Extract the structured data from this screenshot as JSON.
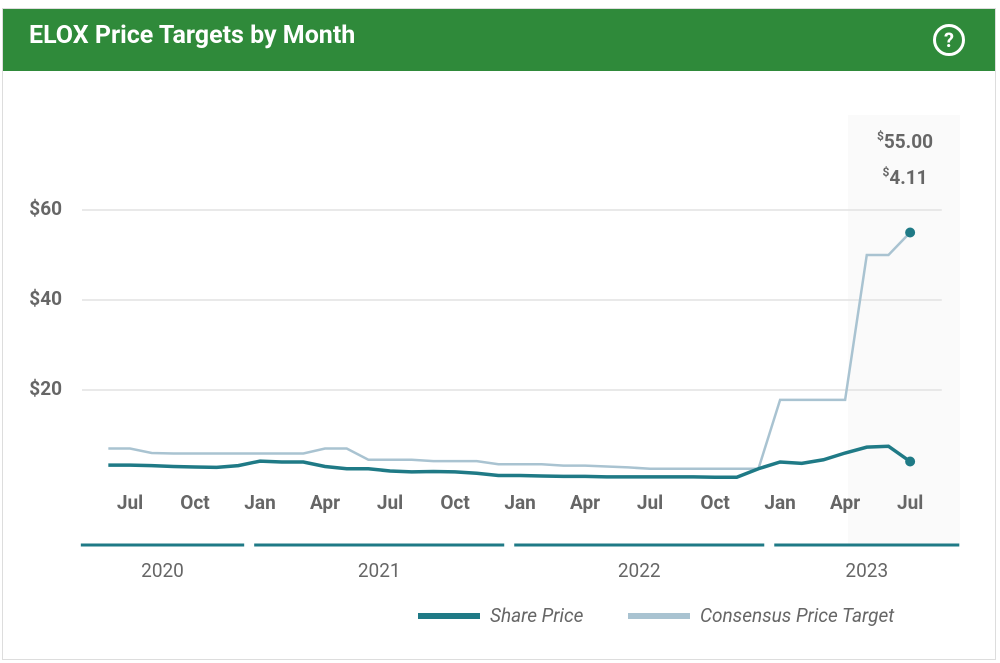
{
  "chart_data": {
    "type": "line",
    "title": "ELOX Price Targets by Month",
    "x": [
      "2020-06",
      "2020-07",
      "2020-08",
      "2020-09",
      "2020-10",
      "2020-11",
      "2020-12",
      "2021-01",
      "2021-02",
      "2021-03",
      "2021-04",
      "2021-05",
      "2021-06",
      "2021-07",
      "2021-08",
      "2021-09",
      "2021-10",
      "2021-11",
      "2021-12",
      "2022-01",
      "2022-02",
      "2022-03",
      "2022-04",
      "2022-05",
      "2022-06",
      "2022-07",
      "2022-08",
      "2022-09",
      "2022-10",
      "2022-11",
      "2022-12",
      "2023-01",
      "2023-02",
      "2023-03",
      "2023-04",
      "2023-05",
      "2023-06",
      "2023-07"
    ],
    "series": [
      {
        "name": "Share Price",
        "color": "#1f7a86",
        "values": [
          3.3,
          3.3,
          3.2,
          3.0,
          2.9,
          2.8,
          3.2,
          4.2,
          4.0,
          4.0,
          3.0,
          2.5,
          2.5,
          2.0,
          1.8,
          1.9,
          1.8,
          1.5,
          1.0,
          1.0,
          0.9,
          0.8,
          0.8,
          0.7,
          0.7,
          0.7,
          0.7,
          0.7,
          0.6,
          0.6,
          2.5,
          4.0,
          3.7,
          4.5,
          6.0,
          7.3,
          7.5,
          4.11
        ]
      },
      {
        "name": "Consensus Price Target",
        "color": "#a9c3d1",
        "values": [
          7,
          7,
          6,
          5.9,
          5.9,
          5.9,
          5.9,
          5.9,
          5.9,
          5.9,
          7,
          7,
          4.5,
          4.5,
          4.5,
          4.2,
          4.2,
          4.2,
          3.5,
          3.5,
          3.5,
          3.2,
          3.2,
          3.0,
          2.8,
          2.5,
          2.5,
          2.5,
          2.5,
          2.5,
          2.5,
          17.8,
          17.8,
          17.8,
          17.8,
          50,
          50,
          55
        ]
      }
    ],
    "xlim": [
      "2020-05",
      "2023-08"
    ],
    "xticks": [
      {
        "value": "2020-07",
        "label": "Jul"
      },
      {
        "value": "2020-10",
        "label": "Oct"
      },
      {
        "value": "2021-01",
        "label": "Jan"
      },
      {
        "value": "2021-04",
        "label": "Apr"
      },
      {
        "value": "2021-07",
        "label": "Jul"
      },
      {
        "value": "2021-10",
        "label": "Oct"
      },
      {
        "value": "2022-01",
        "label": "Jan"
      },
      {
        "value": "2022-04",
        "label": "Apr"
      },
      {
        "value": "2022-07",
        "label": "Jul"
      },
      {
        "value": "2022-10",
        "label": "Oct"
      },
      {
        "value": "2023-01",
        "label": "Jan"
      },
      {
        "value": "2023-04",
        "label": "Apr"
      },
      {
        "value": "2023-07",
        "label": "Jul"
      }
    ],
    "years": [
      "2020",
      "2021",
      "2022",
      "2023"
    ],
    "ylim": [
      0,
      80
    ],
    "yticks": [
      {
        "value": 20,
        "label": "$20"
      },
      {
        "value": 40,
        "label": "$40"
      },
      {
        "value": 60,
        "label": "$60"
      }
    ],
    "grid": true,
    "tooltip": {
      "items": [
        {
          "symbol": "$",
          "text": "55.00",
          "series": 1
        },
        {
          "symbol": "$",
          "text": "4.11",
          "series": 0
        }
      ]
    }
  }
}
